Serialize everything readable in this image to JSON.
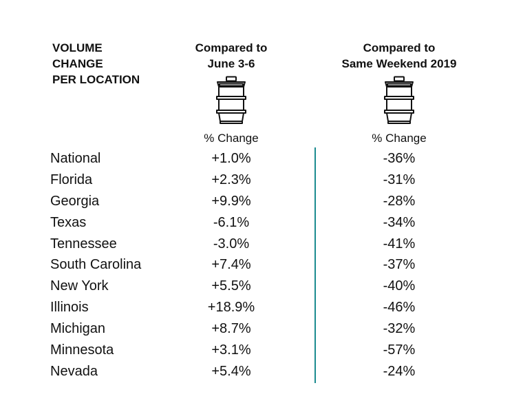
{
  "header": {
    "title": "VOLUME\nCHANGE\nPER LOCATION",
    "col1_title": "Compared to\nJune 3-6",
    "col2_title": "Compared to\nSame Weekend 2019",
    "col1_sub": "% Change",
    "col2_sub": "% Change"
  },
  "icons": {
    "col1": "keg-icon",
    "col2": "keg-icon"
  },
  "accent_color": "#1a8a8f",
  "rows": [
    {
      "location": "National",
      "vs_june": "+1.0%",
      "vs_2019": "-36%"
    },
    {
      "location": "Florida",
      "vs_june": "+2.3%",
      "vs_2019": "-31%"
    },
    {
      "location": "Georgia",
      "vs_june": "+9.9%",
      "vs_2019": "-28%"
    },
    {
      "location": "Texas",
      "vs_june": "-6.1%",
      "vs_2019": "-34%"
    },
    {
      "location": "Tennessee",
      "vs_june": "-3.0%",
      "vs_2019": "-41%"
    },
    {
      "location": "South Carolina",
      "vs_june": "+7.4%",
      "vs_2019": "-37%"
    },
    {
      "location": "New York",
      "vs_june": "+5.5%",
      "vs_2019": "-40%"
    },
    {
      "location": "Illinois",
      "vs_june": "+18.9%",
      "vs_2019": "-46%"
    },
    {
      "location": "Michigan",
      "vs_june": "+8.7%",
      "vs_2019": "-32%"
    },
    {
      "location": "Minnesota",
      "vs_june": "+3.1%",
      "vs_2019": "-57%"
    },
    {
      "location": "Nevada",
      "vs_june": "+5.4%",
      "vs_2019": "-24%"
    }
  ]
}
